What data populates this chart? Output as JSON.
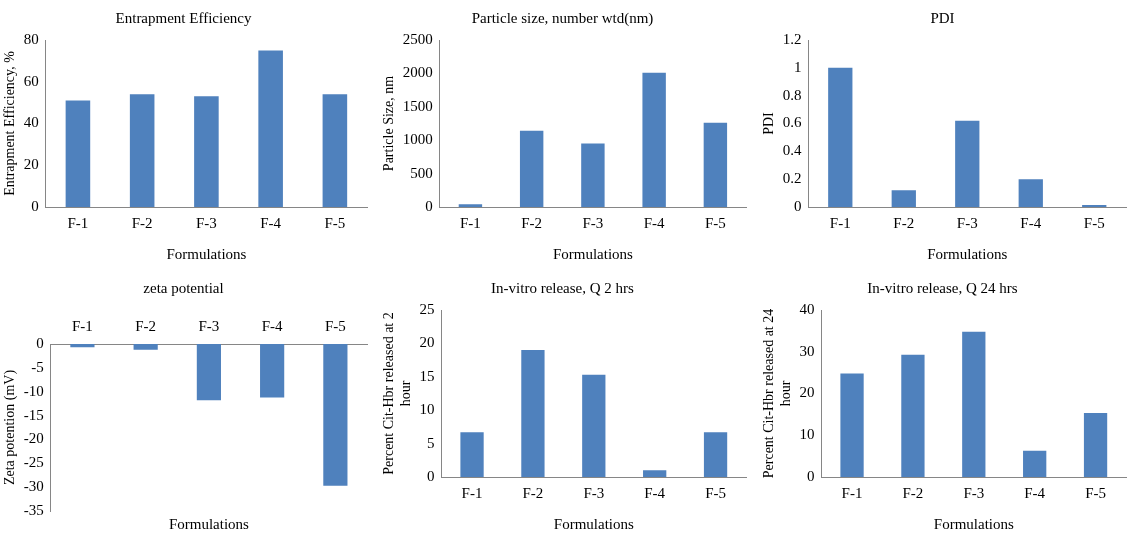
{
  "chart_data": [
    {
      "type": "bar",
      "title": "Entrapment Efficiency",
      "xlabel": "Formulations",
      "ylabel": "Entrapment Efficiency, %",
      "categories": [
        "F-1",
        "F-2",
        "F-3",
        "F-4",
        "F-5"
      ],
      "values": [
        51,
        54,
        53,
        75,
        54
      ],
      "color": "#4f81bd",
      "ylim": [
        0,
        80
      ],
      "yticks": [
        0,
        20,
        40,
        60,
        80
      ]
    },
    {
      "type": "bar",
      "title": "Particle size, number wtd(nm)",
      "xlabel": "Formulations",
      "ylabel": "Particle Size, nm",
      "categories": [
        "F-1",
        "F-2",
        "F-3",
        "F-4",
        "F-5"
      ],
      "values": [
        40,
        1140,
        950,
        2010,
        1260
      ],
      "color": "#4f81bd",
      "ylim": [
        0,
        2500
      ],
      "yticks": [
        0,
        500,
        1000,
        1500,
        2000,
        2500
      ]
    },
    {
      "type": "bar",
      "title": "PDI",
      "xlabel": "Formulations",
      "ylabel": "PDI",
      "categories": [
        "F-1",
        "F-2",
        "F-3",
        "F-4",
        "F-5"
      ],
      "values": [
        1.0,
        0.12,
        0.62,
        0.2,
        0.015
      ],
      "color": "#4f81bd",
      "ylim": [
        0,
        1.2
      ],
      "yticks": [
        0,
        0.2,
        0.4,
        0.6,
        0.8,
        1,
        1.2
      ]
    },
    {
      "type": "bar",
      "title": "zeta potential",
      "xlabel": "Formulations",
      "ylabel": "Zeta potention (mV)",
      "categories": [
        "F-1",
        "F-2",
        "F-3",
        "F-4",
        "F-5"
      ],
      "values": [
        -0.7,
        -1.2,
        -11.8,
        -11.2,
        -29.7
      ],
      "color": "#4f81bd",
      "ylim": [
        -35,
        0
      ],
      "yticks": [
        -35,
        -30,
        -25,
        -20,
        -15,
        -10,
        -5,
        0
      ]
    },
    {
      "type": "bar",
      "title": "In-vitro release, Q 2 hrs",
      "xlabel": "Formulations",
      "ylabel": "Percent Cit-Hbr released at 2 hour",
      "categories": [
        "F-1",
        "F-2",
        "F-3",
        "F-4",
        "F-5"
      ],
      "values": [
        6.7,
        19,
        15.3,
        1,
        6.7
      ],
      "color": "#4f81bd",
      "ylim": [
        0,
        25
      ],
      "yticks": [
        0,
        5,
        10,
        15,
        20,
        25
      ]
    },
    {
      "type": "bar",
      "title": "In-vitro release, Q 24 hrs",
      "xlabel": "Formulations",
      "ylabel": "Percent Cit-Hbr released at 24 hour",
      "categories": [
        "F-1",
        "F-2",
        "F-3",
        "F-4",
        "F-5"
      ],
      "values": [
        24.8,
        29.3,
        34.8,
        6.3,
        15.3
      ],
      "color": "#4f81bd",
      "ylim": [
        0,
        40
      ],
      "yticks": [
        0,
        10,
        20,
        30,
        40
      ]
    }
  ]
}
